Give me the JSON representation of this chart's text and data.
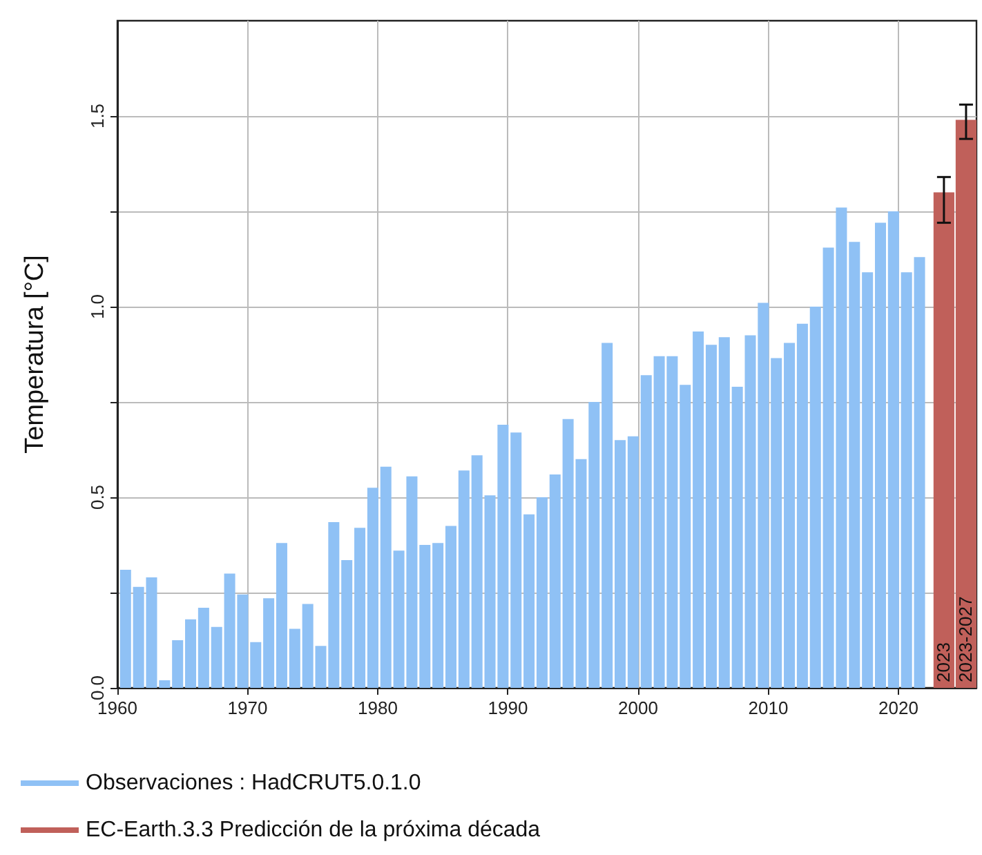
{
  "chart_data": {
    "type": "bar",
    "ylabel": "Temperatura [°C]",
    "xlim": [
      1960,
      2026
    ],
    "xticks": [
      1960,
      1970,
      1980,
      1990,
      2000,
      2010,
      2020
    ],
    "ylim": [
      0,
      1.75
    ],
    "yticks": [
      {
        "value": 0,
        "label": "0.0"
      },
      {
        "value": 0.25,
        "label": null
      },
      0.5,
      {
        "value": 0.75,
        "label": null
      },
      {
        "value": 1,
        "label": "1.0"
      },
      {
        "value": 1.25,
        "label": null
      },
      1.5
    ],
    "grid": true,
    "legend": "bottom left",
    "series": [
      {
        "name": "Observaciones : HadCRUT5.0.1.0",
        "color": "#8fc1f5",
        "x": [
          1961,
          1962,
          1963,
          1964,
          1965,
          1966,
          1967,
          1968,
          1969,
          1970,
          1971,
          1972,
          1973,
          1974,
          1975,
          1976,
          1977,
          1978,
          1979,
          1980,
          1981,
          1982,
          1983,
          1984,
          1985,
          1986,
          1987,
          1988,
          1989,
          1990,
          1991,
          1992,
          1993,
          1994,
          1995,
          1996,
          1997,
          1998,
          1999,
          2000,
          2001,
          2002,
          2003,
          2004,
          2005,
          2006,
          2007,
          2008,
          2009,
          2010,
          2011,
          2012,
          2013,
          2014,
          2015,
          2016,
          2017,
          2018,
          2019,
          2020,
          2021,
          2022
        ],
        "values": [
          0.31,
          0.265,
          0.29,
          0.02,
          0.125,
          0.18,
          0.21,
          0.16,
          0.3,
          0.245,
          0.12,
          0.235,
          0.38,
          0.155,
          0.22,
          0.11,
          0.435,
          0.335,
          0.42,
          0.525,
          0.58,
          0.36,
          0.555,
          0.375,
          0.38,
          0.425,
          0.57,
          0.61,
          0.505,
          0.69,
          0.67,
          0.455,
          0.5,
          0.56,
          0.705,
          0.6,
          0.75,
          0.905,
          0.65,
          0.66,
          0.82,
          0.87,
          0.87,
          0.795,
          0.935,
          0.9,
          0.92,
          0.79,
          0.925,
          1.01,
          0.865,
          0.905,
          0.955,
          1.0,
          1.155,
          1.26,
          1.17,
          1.09,
          1.22,
          1.25,
          1.09,
          1.13
        ]
      },
      {
        "name": "EC-Earth.3.3 Predicción de la próxima década",
        "color": "#c0605a",
        "x": [
          2023.5,
          2025.2
        ],
        "values": [
          1.3,
          1.49
        ],
        "errors": [
          [
            1.22,
            1.34
          ],
          [
            1.44,
            1.53
          ]
        ]
      }
    ],
    "annotations": [
      {
        "text": "2023",
        "x": 2023.5,
        "y": 0
      },
      {
        "text": "2023-2027",
        "x": 2025.2,
        "y": 0
      }
    ]
  }
}
